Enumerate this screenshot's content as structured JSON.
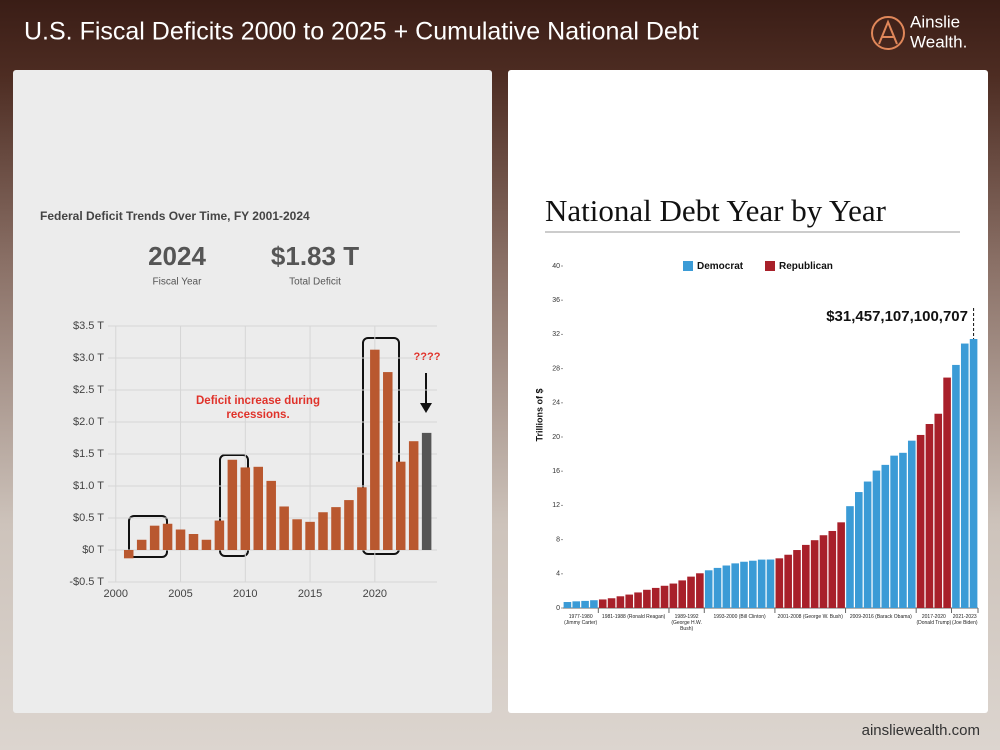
{
  "header": {
    "title": "U.S. Fiscal Deficits 2000 to 2025 + Cumulative National Debt",
    "logo_top": "Ainslie",
    "logo_bottom": "Wealth.",
    "footer": "ainsliewealth.com"
  },
  "chart_data": [
    {
      "type": "bar",
      "title": "Federal Deficit Trends Over Time, FY 2001-2024",
      "stats": [
        {
          "value": "2024",
          "label": "Fiscal Year"
        },
        {
          "value": "$1.83 T",
          "label": "Total Deficit"
        }
      ],
      "x": [
        2001,
        2002,
        2003,
        2004,
        2005,
        2006,
        2007,
        2008,
        2009,
        2010,
        2011,
        2012,
        2013,
        2014,
        2015,
        2016,
        2017,
        2018,
        2019,
        2020,
        2021,
        2022,
        2023,
        2024
      ],
      "values": [
        -0.13,
        0.16,
        0.38,
        0.41,
        0.32,
        0.25,
        0.16,
        0.46,
        1.41,
        1.29,
        1.3,
        1.08,
        0.68,
        0.48,
        0.44,
        0.59,
        0.67,
        0.78,
        0.98,
        3.13,
        2.78,
        1.38,
        1.7,
        1.83
      ],
      "colors": [
        "#b9582f",
        "#b9582f",
        "#b9582f",
        "#b9582f",
        "#b9582f",
        "#b9582f",
        "#b9582f",
        "#b9582f",
        "#b9582f",
        "#b9582f",
        "#b9582f",
        "#b9582f",
        "#b9582f",
        "#b9582f",
        "#b9582f",
        "#b9582f",
        "#b9582f",
        "#b9582f",
        "#b9582f",
        "#b9582f",
        "#b9582f",
        "#b9582f",
        "#b9582f",
        "#555555"
      ],
      "xlim": [
        1999.4,
        2024.8
      ],
      "xticks": [
        2000,
        2005,
        2010,
        2015,
        2020
      ],
      "ylim": [
        -0.5,
        3.5
      ],
      "yticks": [
        {
          "value": -0.5,
          "label": "-$0.5 T"
        },
        {
          "value": 0,
          "label": "$0 T"
        },
        {
          "value": 0.5,
          "label": "$0.5 T"
        },
        {
          "value": 1,
          "label": "$1.0 T"
        },
        {
          "value": 1.5,
          "label": "$1.5 T"
        },
        {
          "value": 2,
          "label": "$2.0 T"
        },
        {
          "value": 2.5,
          "label": "$2.5 T"
        },
        {
          "value": 3,
          "label": "$3.0 T"
        },
        {
          "value": 3.5,
          "label": "$3.5 T"
        }
      ],
      "grid": true,
      "annotations": [
        "Deficit increase during recessions.",
        "????"
      ]
    },
    {
      "type": "bar",
      "title": "National Debt Year by Year",
      "y_label": "Trillions of $",
      "categories": [
        "1977-1980 (Jimmy Carter)",
        null,
        null,
        null,
        "1981-1988 (Ronald Reagan)",
        null,
        null,
        null,
        null,
        null,
        null,
        null,
        "1989-1992 (George H.W. Bush)",
        null,
        null,
        null,
        "1993-2000 (Bill Clinton)",
        null,
        null,
        null,
        null,
        null,
        null,
        null,
        "2001-2008 (George W. Bush)",
        null,
        null,
        null,
        null,
        null,
        null,
        null,
        "2009-2016 (Barack Obama)",
        null,
        null,
        null,
        null,
        null,
        null,
        null,
        "2017-2020 (Donald Trump)",
        null,
        null,
        null,
        "2021-2023 (Joe Biden)",
        null,
        null
      ],
      "series": [
        {
          "name": "Democrat",
          "color": "#3b9bd6",
          "values": [
            0.7,
            0.78,
            0.83,
            0.91,
            null,
            null,
            null,
            null,
            null,
            null,
            null,
            null,
            null,
            null,
            null,
            null,
            4.41,
            4.69,
            4.97,
            5.22,
            5.41,
            5.53,
            5.66,
            5.67,
            null,
            null,
            null,
            null,
            null,
            null,
            null,
            null,
            11.91,
            13.56,
            14.79,
            16.07,
            16.74,
            17.82,
            18.15,
            19.57,
            null,
            null,
            null,
            null,
            28.43,
            30.93,
            31.46
          ]
        },
        {
          "name": "Republican",
          "color": "#a8202a",
          "values": [
            null,
            null,
            null,
            null,
            1.0,
            1.14,
            1.37,
            1.57,
            1.82,
            2.13,
            2.35,
            2.6,
            2.86,
            3.23,
            3.67,
            4.06,
            null,
            null,
            null,
            null,
            null,
            null,
            null,
            null,
            5.81,
            6.23,
            6.78,
            7.38,
            7.93,
            8.51,
            9.01,
            10.02,
            null,
            null,
            null,
            null,
            null,
            null,
            null,
            null,
            20.24,
            21.52,
            22.72,
            26.95,
            null,
            null,
            null
          ]
        }
      ],
      "ylim": [
        0,
        40
      ],
      "yticks": [
        0,
        4,
        8,
        12,
        16,
        20,
        24,
        28,
        32,
        36,
        40
      ],
      "annotation": "$31,457,107,100,707",
      "legend": "top"
    }
  ]
}
